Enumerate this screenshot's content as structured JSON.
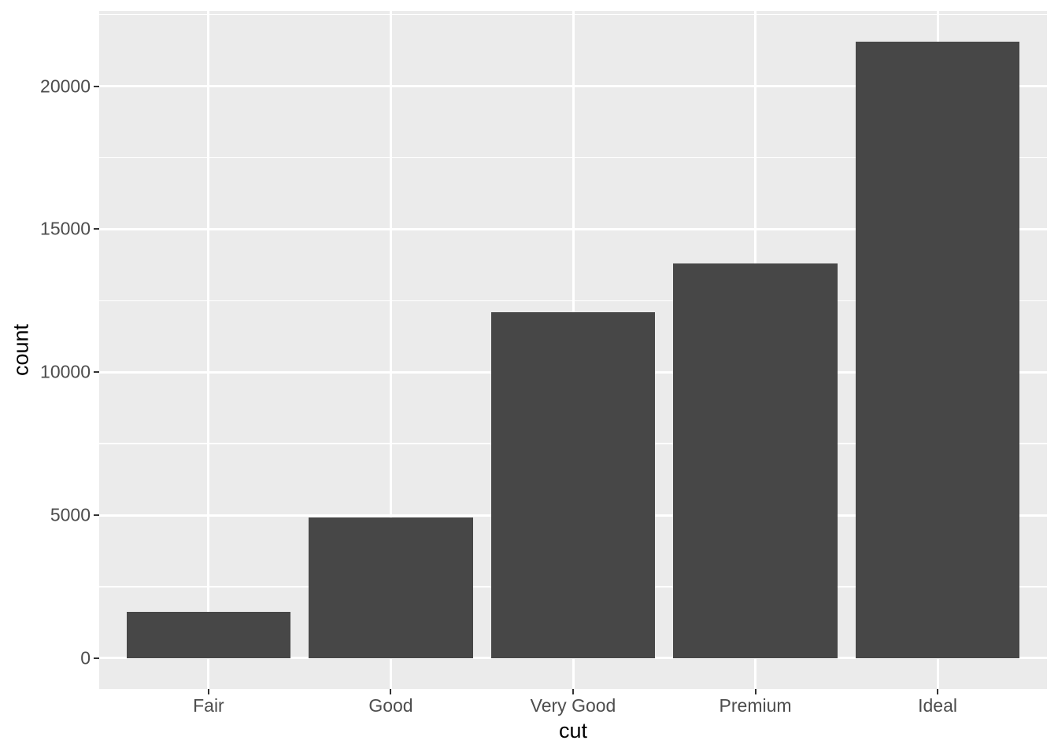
{
  "figure": {
    "background": "#FFFFFF",
    "panel_background": "#EBEBEB",
    "grid_color": "#FFFFFF",
    "bar_color": "#474747",
    "tick_mark_color": "#333333",
    "tick_label_color": "#4D4D4D",
    "axis_title_color": "#000000"
  },
  "chart_data": {
    "type": "bar",
    "categories": [
      "Fair",
      "Good",
      "Very Good",
      "Premium",
      "Ideal"
    ],
    "values": [
      1610,
      4906,
      12082,
      13791,
      21551
    ],
    "title": "",
    "xlabel": "cut",
    "ylabel": "count",
    "ylim": [
      -1078,
      22629
    ],
    "y_major_ticks": [
      0,
      5000,
      10000,
      15000,
      20000
    ],
    "y_minor_ticks": [
      2500,
      7500,
      12500,
      17500,
      22500
    ],
    "bar_width_fraction": 0.9,
    "category_expansion": 0.6,
    "grid": true,
    "legend_position": "none"
  }
}
